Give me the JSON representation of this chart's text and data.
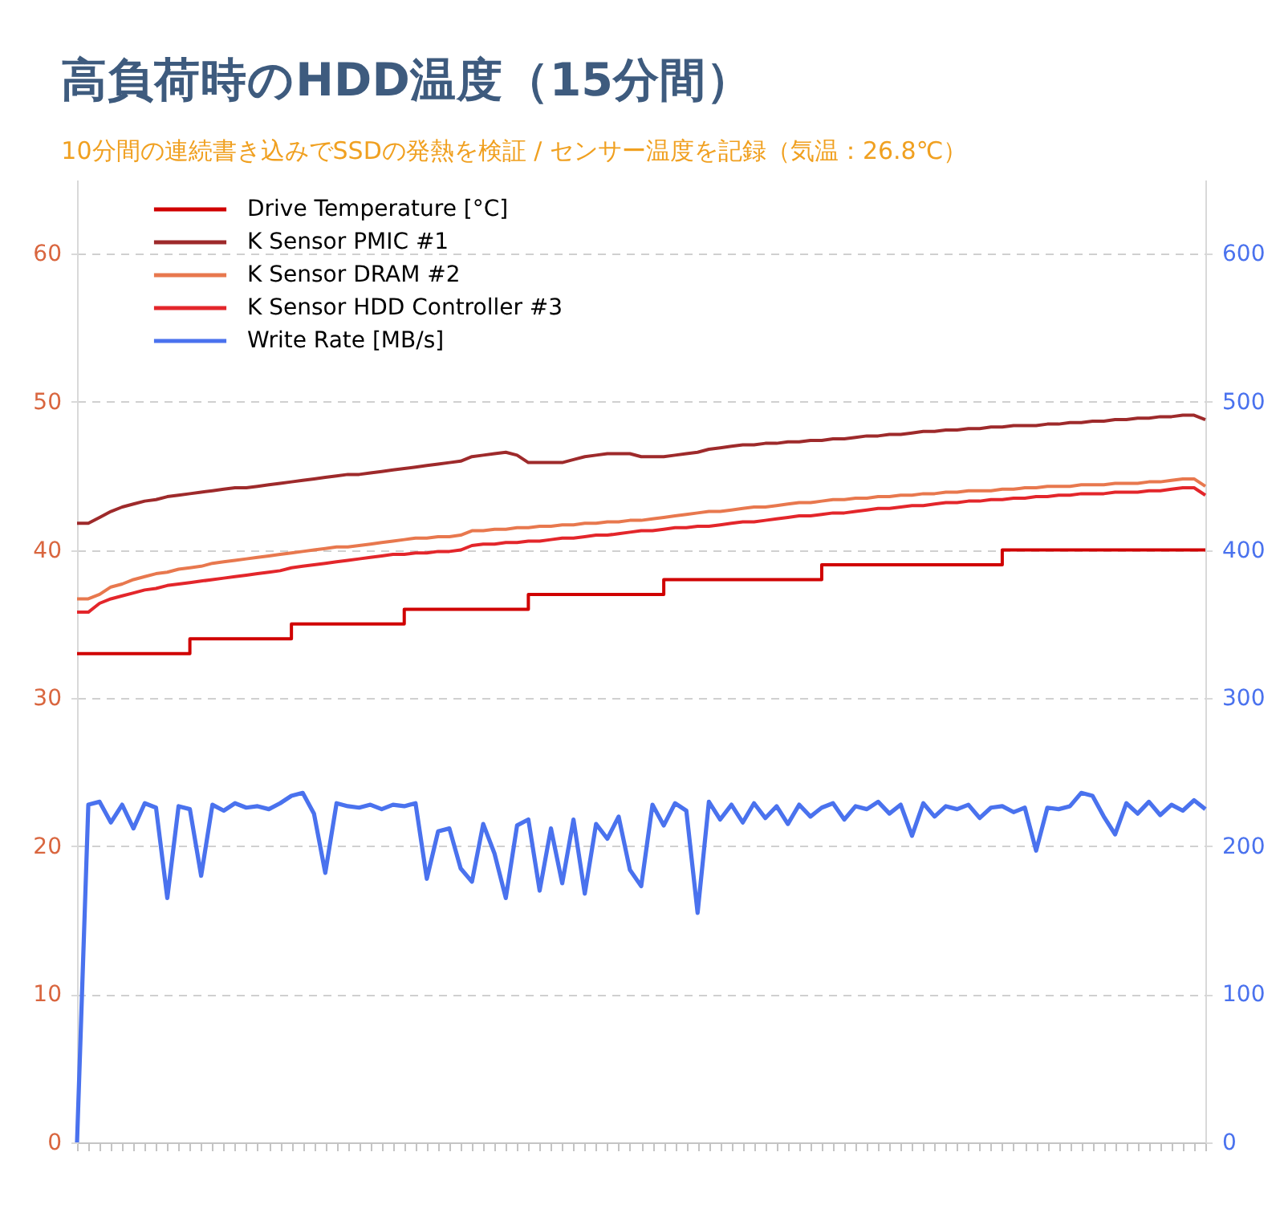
{
  "chart_data": {
    "type": "line",
    "title": "高負荷時のHDD温度（15分間）",
    "subtitle": "10分間の連続書き込みでSSDの発熱を検証 / センサー温度を記録（気温：26.8℃）",
    "categories": [
      null,
      null,
      null,
      null,
      null,
      null,
      null,
      null,
      null,
      null,
      null,
      null,
      null,
      null,
      null,
      null,
      null,
      null,
      null,
      null,
      null,
      null,
      null,
      null,
      null,
      null,
      null,
      null,
      null,
      null,
      null,
      null,
      null,
      null,
      null,
      null,
      null,
      null,
      null,
      null,
      null,
      null,
      null,
      null,
      null,
      null,
      null,
      null,
      null,
      null,
      null,
      null,
      null,
      null,
      null,
      null,
      null,
      null,
      null,
      null,
      null,
      null,
      null,
      null,
      null,
      null,
      null,
      null,
      null,
      null,
      null,
      null,
      null,
      null,
      null,
      null,
      null,
      null,
      null,
      null,
      null,
      null,
      null,
      null,
      null,
      null,
      null,
      null,
      null,
      null,
      null,
      null,
      null,
      null,
      null,
      null,
      null,
      null,
      null,
      null,
      null
    ],
    "series": [
      {
        "name": "Drive Temperature [°C]",
        "type": "step",
        "color": "#d00000",
        "values": [
          33,
          33,
          33,
          33,
          33,
          33,
          33,
          33,
          33,
          33,
          34,
          34,
          34,
          34,
          34,
          34,
          34,
          34,
          34,
          35,
          35,
          35,
          35,
          35,
          35,
          35,
          35,
          35,
          35,
          36,
          36,
          36,
          36,
          36,
          36,
          36,
          36,
          36,
          36,
          36,
          37,
          37,
          37,
          37,
          37,
          37,
          37,
          37,
          37,
          37,
          37,
          37,
          38,
          38,
          38,
          38,
          38,
          38,
          38,
          38,
          38,
          38,
          38,
          38,
          38,
          38,
          39,
          39,
          39,
          39,
          39,
          39,
          39,
          39,
          39,
          39,
          39,
          39,
          39,
          39,
          39,
          39,
          40,
          40,
          40,
          40,
          40,
          40,
          40,
          40,
          40,
          40,
          40,
          40,
          40,
          40,
          40,
          40,
          40,
          40,
          40
        ]
      },
      {
        "name": "K Sensor PMIC #1",
        "color": "#9e2a2b",
        "values": [
          41.8,
          41.8,
          42.2,
          42.6,
          42.9,
          43.1,
          43.3,
          43.4,
          43.6,
          43.7,
          43.8,
          43.9,
          44.0,
          44.1,
          44.2,
          44.2,
          44.3,
          44.4,
          44.5,
          44.6,
          44.7,
          44.8,
          44.9,
          45.0,
          45.1,
          45.1,
          45.2,
          45.3,
          45.4,
          45.5,
          45.6,
          45.7,
          45.8,
          45.9,
          46.0,
          46.3,
          46.4,
          46.5,
          46.6,
          46.4,
          45.9,
          45.9,
          45.9,
          45.9,
          46.1,
          46.3,
          46.4,
          46.5,
          46.5,
          46.5,
          46.3,
          46.3,
          46.3,
          46.4,
          46.5,
          46.6,
          46.8,
          46.9,
          47.0,
          47.1,
          47.1,
          47.2,
          47.2,
          47.3,
          47.3,
          47.4,
          47.4,
          47.5,
          47.5,
          47.6,
          47.7,
          47.7,
          47.8,
          47.8,
          47.9,
          48.0,
          48.0,
          48.1,
          48.1,
          48.2,
          48.2,
          48.3,
          48.3,
          48.4,
          48.4,
          48.4,
          48.5,
          48.5,
          48.6,
          48.6,
          48.7,
          48.7,
          48.8,
          48.8,
          48.9,
          48.9,
          49.0,
          49.0,
          49.1,
          49.1,
          48.8
        ]
      },
      {
        "name": "K Sensor DRAM #2",
        "color": "#e8784e",
        "values": [
          36.7,
          36.7,
          37.0,
          37.5,
          37.7,
          38.0,
          38.2,
          38.4,
          38.5,
          38.7,
          38.8,
          38.9,
          39.1,
          39.2,
          39.3,
          39.4,
          39.5,
          39.6,
          39.7,
          39.8,
          39.9,
          40.0,
          40.1,
          40.2,
          40.2,
          40.3,
          40.4,
          40.5,
          40.6,
          40.7,
          40.8,
          40.8,
          40.9,
          40.9,
          41.0,
          41.3,
          41.3,
          41.4,
          41.4,
          41.5,
          41.5,
          41.6,
          41.6,
          41.7,
          41.7,
          41.8,
          41.8,
          41.9,
          41.9,
          42.0,
          42.0,
          42.1,
          42.2,
          42.3,
          42.4,
          42.5,
          42.6,
          42.6,
          42.7,
          42.8,
          42.9,
          42.9,
          43.0,
          43.1,
          43.2,
          43.2,
          43.3,
          43.4,
          43.4,
          43.5,
          43.5,
          43.6,
          43.6,
          43.7,
          43.7,
          43.8,
          43.8,
          43.9,
          43.9,
          44.0,
          44.0,
          44.0,
          44.1,
          44.1,
          44.2,
          44.2,
          44.3,
          44.3,
          44.3,
          44.4,
          44.4,
          44.4,
          44.5,
          44.5,
          44.5,
          44.6,
          44.6,
          44.7,
          44.8,
          44.8,
          44.3
        ]
      },
      {
        "name": "K Sensor HDD Controller #3",
        "color": "#e3262b",
        "values": [
          35.8,
          35.8,
          36.4,
          36.7,
          36.9,
          37.1,
          37.3,
          37.4,
          37.6,
          37.7,
          37.8,
          37.9,
          38.0,
          38.1,
          38.2,
          38.3,
          38.4,
          38.5,
          38.6,
          38.8,
          38.9,
          39.0,
          39.1,
          39.2,
          39.3,
          39.4,
          39.5,
          39.6,
          39.7,
          39.7,
          39.8,
          39.8,
          39.9,
          39.9,
          40.0,
          40.3,
          40.4,
          40.4,
          40.5,
          40.5,
          40.6,
          40.6,
          40.7,
          40.8,
          40.8,
          40.9,
          41.0,
          41.0,
          41.1,
          41.2,
          41.3,
          41.3,
          41.4,
          41.5,
          41.5,
          41.6,
          41.6,
          41.7,
          41.8,
          41.9,
          41.9,
          42.0,
          42.1,
          42.2,
          42.3,
          42.3,
          42.4,
          42.5,
          42.5,
          42.6,
          42.7,
          42.8,
          42.8,
          42.9,
          43.0,
          43.0,
          43.1,
          43.2,
          43.2,
          43.3,
          43.3,
          43.4,
          43.4,
          43.5,
          43.5,
          43.6,
          43.6,
          43.7,
          43.7,
          43.8,
          43.8,
          43.8,
          43.9,
          43.9,
          43.9,
          44.0,
          44.0,
          44.1,
          44.2,
          44.2,
          43.7
        ]
      },
      {
        "name": "Write Rate [MB/s]",
        "color": "#4a72ee",
        "axis": "y2",
        "values": [
          0,
          228,
          230,
          216,
          228,
          212,
          229,
          226,
          165,
          227,
          225,
          180,
          228,
          224,
          229,
          226,
          227,
          225,
          229,
          234,
          236,
          222,
          182,
          229,
          227,
          226,
          228,
          225,
          228,
          227,
          229,
          178,
          210,
          212,
          185,
          176,
          215,
          195,
          165,
          214,
          218,
          170,
          212,
          175,
          218,
          168,
          215,
          205,
          220,
          184,
          173,
          228,
          214,
          229,
          224,
          155,
          230,
          218,
          228,
          216,
          229,
          219,
          227,
          215,
          228,
          220,
          226,
          229,
          218,
          227,
          225,
          230,
          222,
          228,
          207,
          229,
          220,
          227,
          225,
          228,
          219,
          226,
          227,
          223,
          226,
          197,
          226,
          225,
          227,
          236,
          234,
          220,
          208,
          229,
          222,
          230,
          221,
          228,
          224,
          231,
          225
        ]
      }
    ],
    "ylim": [
      0,
      65
    ],
    "yticks": [
      0,
      10,
      20,
      30,
      40,
      50,
      60
    ],
    "y2lim": [
      0,
      650
    ],
    "y2ticks": [
      0,
      100,
      200,
      300,
      400,
      500,
      600
    ],
    "grid": "y",
    "legend": "top left"
  }
}
